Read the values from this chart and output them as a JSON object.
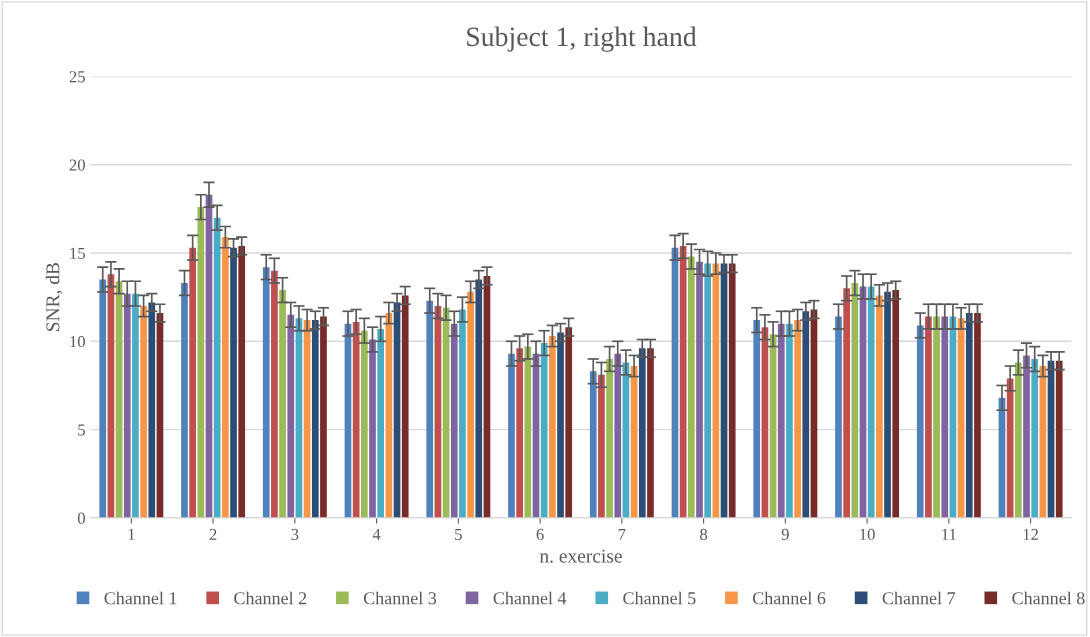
{
  "chart_data": {
    "type": "bar",
    "title": "Subject 1, right hand",
    "xlabel": "n. exercise",
    "ylabel": "SNR, dB",
    "categories": [
      "1",
      "2",
      "3",
      "4",
      "5",
      "6",
      "7",
      "8",
      "9",
      "10",
      "11",
      "12"
    ],
    "ylim": [
      0,
      25
    ],
    "yticks": [
      0,
      5,
      10,
      15,
      20,
      25
    ],
    "grid": "y",
    "legend": "bottom",
    "series": [
      {
        "name": "Channel 1",
        "color": "#4f81bd",
        "values": [
          13.5,
          13.3,
          14.2,
          11.0,
          12.3,
          9.3,
          8.3,
          15.3,
          11.2,
          11.4,
          10.9,
          6.8
        ],
        "errors": [
          0.7,
          0.7,
          0.7,
          0.7,
          0.7,
          0.7,
          0.7,
          0.7,
          0.7,
          0.7,
          0.7,
          0.7
        ]
      },
      {
        "name": "Channel 2",
        "color": "#c0504d",
        "values": [
          13.8,
          15.3,
          14.0,
          11.1,
          12.0,
          9.6,
          8.1,
          15.4,
          10.8,
          13.0,
          11.4,
          7.9
        ],
        "errors": [
          0.7,
          0.7,
          0.7,
          0.7,
          0.7,
          0.7,
          0.7,
          0.7,
          0.7,
          0.7,
          0.7,
          0.7
        ]
      },
      {
        "name": "Channel 3",
        "color": "#9bbb59",
        "values": [
          13.4,
          17.6,
          12.9,
          10.6,
          11.9,
          9.7,
          9.0,
          14.8,
          10.4,
          13.3,
          11.4,
          8.8
        ],
        "errors": [
          0.7,
          0.7,
          0.7,
          0.7,
          0.7,
          0.7,
          0.7,
          0.7,
          0.7,
          0.7,
          0.7,
          0.7
        ]
      },
      {
        "name": "Channel 4",
        "color": "#8064a2",
        "values": [
          12.7,
          18.3,
          11.5,
          10.1,
          11.0,
          9.3,
          9.3,
          14.5,
          11.0,
          13.1,
          11.4,
          9.2
        ],
        "errors": [
          0.7,
          0.7,
          0.7,
          0.7,
          0.7,
          0.7,
          0.7,
          0.7,
          0.7,
          0.7,
          0.7,
          0.7
        ]
      },
      {
        "name": "Channel 5",
        "color": "#4bacc6",
        "values": [
          12.7,
          17.0,
          11.3,
          10.7,
          11.8,
          9.9,
          8.8,
          14.4,
          11.0,
          13.1,
          11.4,
          9.0
        ],
        "errors": [
          0.7,
          0.7,
          0.7,
          0.7,
          0.7,
          0.7,
          0.7,
          0.7,
          0.7,
          0.7,
          0.7,
          0.7
        ]
      },
      {
        "name": "Channel 6",
        "color": "#f79646",
        "values": [
          12.0,
          15.9,
          11.2,
          11.6,
          12.8,
          10.3,
          8.6,
          14.4,
          11.2,
          12.6,
          11.3,
          8.6
        ],
        "errors": [
          0.6,
          0.6,
          0.6,
          0.6,
          0.6,
          0.6,
          0.6,
          0.6,
          0.6,
          0.6,
          0.6,
          0.6
        ]
      },
      {
        "name": "Channel 7",
        "color": "#2c4d75",
        "values": [
          12.2,
          15.3,
          11.2,
          12.2,
          13.5,
          10.5,
          9.6,
          14.4,
          11.7,
          12.8,
          11.6,
          8.9
        ],
        "errors": [
          0.5,
          0.5,
          0.5,
          0.5,
          0.5,
          0.5,
          0.5,
          0.5,
          0.5,
          0.5,
          0.5,
          0.5
        ]
      },
      {
        "name": "Channel 8",
        "color": "#772c2a",
        "values": [
          11.6,
          15.4,
          11.4,
          12.6,
          13.7,
          10.8,
          9.6,
          14.4,
          11.8,
          12.9,
          11.6,
          8.9
        ],
        "errors": [
          0.5,
          0.5,
          0.5,
          0.5,
          0.5,
          0.5,
          0.5,
          0.5,
          0.5,
          0.5,
          0.5,
          0.5
        ]
      }
    ]
  }
}
